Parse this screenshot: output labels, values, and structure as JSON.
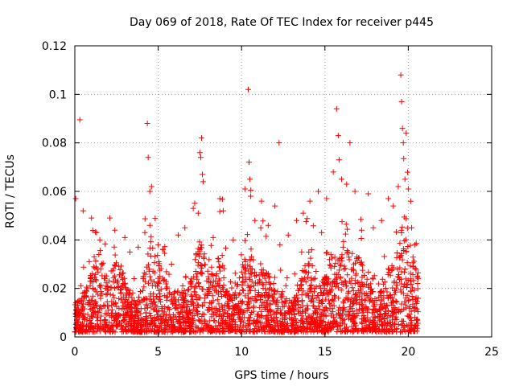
{
  "chart_data": {
    "type": "scatter",
    "title": "Day 069 of 2018, Rate Of TEC Index for receiver p445",
    "xlabel": "GPS time / hours",
    "ylabel": "ROTI / TECUs",
    "xlim": [
      0,
      25
    ],
    "ylim": [
      0,
      0.12
    ],
    "xticks": [
      0,
      5,
      10,
      15,
      20,
      25
    ],
    "xtick_labels": [
      "0",
      "5",
      "10",
      "15",
      "20",
      "25"
    ],
    "yticks": [
      0,
      0.02,
      0.04,
      0.06,
      0.08,
      0.1,
      0.12
    ],
    "ytick_labels": [
      "0",
      "0.02",
      "0.04",
      "0.06",
      "0.08",
      "0.1",
      "0.12"
    ],
    "grid": true,
    "marker": "+",
    "color": "#ff0000",
    "series": [
      {
        "name": "ROTI",
        "x": [
          0.05,
          0.3,
          0.5,
          1.0,
          1.3,
          1.5,
          2.1,
          2.4,
          3.0,
          3.3,
          3.8,
          4.2,
          4.35,
          4.4,
          4.5,
          4.5,
          4.6,
          5.0,
          5.3,
          5.8,
          6.2,
          6.6,
          7.1,
          7.4,
          7.5,
          7.55,
          7.6,
          7.65,
          7.7,
          8.3,
          8.7,
          8.9,
          9.5,
          10.2,
          10.4,
          10.45,
          10.5,
          10.55,
          10.8,
          11.2,
          11.6,
          12.0,
          12.25,
          12.3,
          12.8,
          13.3,
          13.7,
          14.1,
          14.6,
          14.8,
          15.1,
          15.5,
          15.7,
          15.8,
          15.85,
          16.0,
          16.3,
          16.5,
          16.8,
          17.2,
          17.6,
          17.9,
          18.4,
          18.8,
          19.1,
          19.4,
          19.55,
          19.6,
          19.65,
          19.7,
          19.8,
          20.0,
          20.2,
          20.4
        ],
        "y": [
          0.057,
          0.0895,
          0.052,
          0.049,
          0.043,
          0.04,
          0.049,
          0.044,
          0.041,
          0.035,
          0.037,
          0.043,
          0.088,
          0.074,
          0.06,
          0.046,
          0.062,
          0.038,
          0.036,
          0.03,
          0.042,
          0.045,
          0.053,
          0.051,
          0.076,
          0.074,
          0.082,
          0.067,
          0.064,
          0.041,
          0.057,
          0.052,
          0.04,
          0.061,
          0.102,
          0.072,
          0.065,
          0.058,
          0.048,
          0.056,
          0.046,
          0.054,
          0.08,
          0.038,
          0.042,
          0.048,
          0.051,
          0.056,
          0.06,
          0.043,
          0.057,
          0.068,
          0.094,
          0.083,
          0.073,
          0.065,
          0.063,
          0.08,
          0.06,
          0.044,
          0.059,
          0.045,
          0.048,
          0.057,
          0.054,
          0.062,
          0.108,
          0.097,
          0.086,
          0.08,
          0.065,
          0.061,
          0.045,
          0.038
        ]
      }
    ],
    "dense_band": {
      "x_range": [
        0.0,
        20.6
      ],
      "typical_y_range": [
        0.002,
        0.035
      ],
      "note_points": 26
    }
  }
}
